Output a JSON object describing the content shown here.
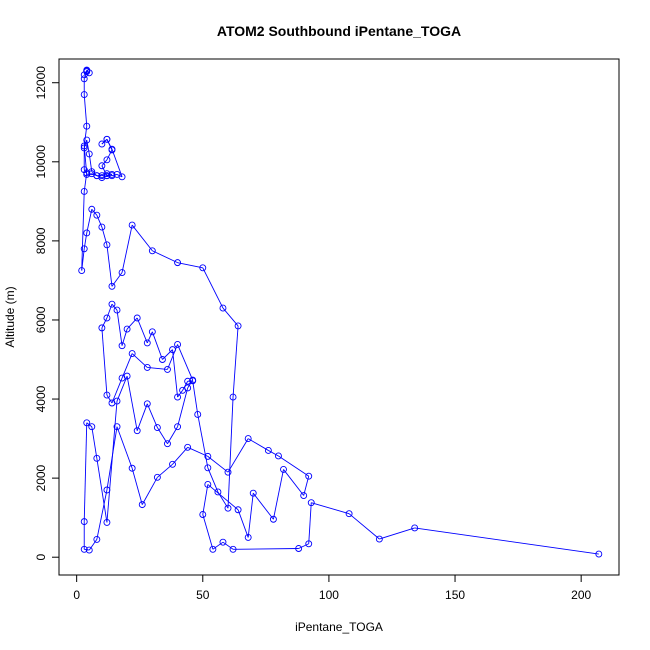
{
  "chart_data": {
    "type": "scatter",
    "title": "ATOM2 Southbound iPentane_TOGA",
    "xlabel": "iPentane_TOGA",
    "ylabel": "Altitude (m)",
    "xlim": [
      -7,
      215
    ],
    "ylim": [
      -450,
      12600
    ],
    "xticks": [
      0,
      50,
      100,
      150,
      200
    ],
    "yticks": [
      0,
      2000,
      4000,
      6000,
      8000,
      10000,
      12000
    ],
    "grid": false,
    "colors": {
      "series": "#0000ff",
      "axis": "#000000"
    },
    "series": [
      {
        "name": "iPentane_TOGA",
        "style": "lines+points",
        "x": [
          207,
          134,
          120,
          108,
          93,
          92,
          88,
          62,
          58,
          54,
          50,
          52,
          64,
          68,
          70,
          78,
          82,
          90,
          92,
          80,
          76,
          68,
          60,
          52,
          44,
          38,
          32,
          26,
          22,
          16,
          12,
          8,
          5,
          3,
          3,
          4,
          6,
          8,
          12,
          16,
          20,
          24,
          28,
          32,
          36,
          40,
          44,
          46,
          40,
          36,
          28,
          22,
          18,
          14,
          12,
          10,
          12,
          14,
          16,
          18,
          20,
          24,
          28,
          30,
          34,
          38,
          40,
          42,
          44,
          46,
          48,
          52,
          56,
          60,
          62,
          64,
          58,
          50,
          40,
          30,
          22,
          18,
          14,
          12,
          10,
          8,
          6,
          4,
          3,
          2,
          3,
          4,
          3,
          3,
          4,
          5,
          6,
          8,
          10,
          12,
          14,
          16,
          18,
          14,
          12,
          10,
          12,
          14,
          12,
          10,
          12,
          14,
          12,
          10,
          8,
          6,
          4,
          3,
          4,
          3,
          3,
          4,
          4,
          5,
          4,
          3
        ],
        "y": [
          80,
          740,
          460,
          1100,
          1380,
          340,
          220,
          200,
          380,
          200,
          1080,
          1840,
          1200,
          500,
          1620,
          960,
          2220,
          1560,
          2050,
          2560,
          2700,
          3000,
          2150,
          2550,
          2780,
          2350,
          2020,
          1330,
          2250,
          3300,
          1700,
          450,
          180,
          200,
          900,
          3400,
          3300,
          2500,
          880,
          3950,
          4580,
          3200,
          3880,
          3280,
          2870,
          3300,
          4280,
          4480,
          5380,
          4750,
          4800,
          5150,
          4530,
          3900,
          4100,
          5800,
          6050,
          6400,
          6250,
          5350,
          5770,
          6050,
          5420,
          5700,
          5000,
          5250,
          4050,
          4220,
          4450,
          4460,
          3610,
          2260,
          1650,
          1240,
          4050,
          5850,
          6300,
          7320,
          7450,
          7750,
          8400,
          7200,
          6850,
          7900,
          8350,
          8650,
          8800,
          8200,
          7800,
          7250,
          9250,
          9720,
          9800,
          10350,
          10550,
          10200,
          9750,
          9650,
          9650,
          9700,
          9650,
          9680,
          9620,
          10320,
          10570,
          10450,
          10570,
          10300,
          10050,
          9900,
          9650,
          9680,
          9650,
          9600,
          9650,
          9700,
          9680,
          10400,
          10900,
          11700,
          12100,
          12280,
          12320,
          12250,
          12300,
          12200
        ]
      }
    ]
  }
}
